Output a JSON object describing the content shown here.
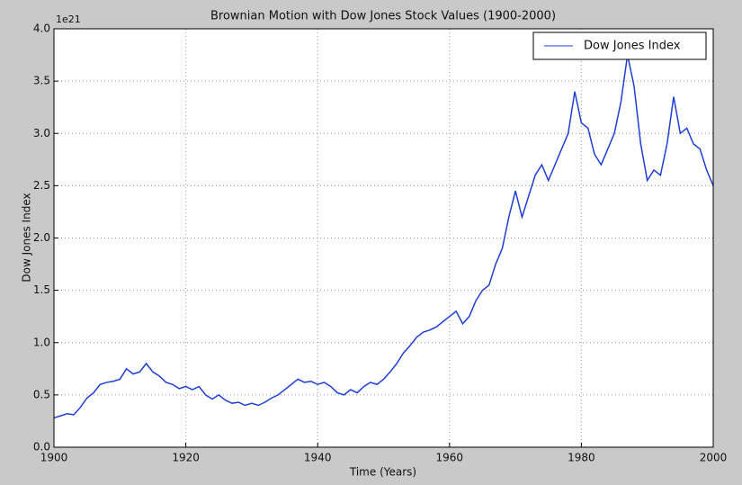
{
  "chart_data": {
    "type": "line",
    "title": "Brownian Motion with Dow Jones Stock Values (1900-2000)",
    "x_label": "Time (Years)",
    "y_label": "Dow Jones Index",
    "y_axis_multiplier": "1e21",
    "x": [
      1900,
      1901,
      1902,
      1903,
      1904,
      1905,
      1906,
      1907,
      1908,
      1909,
      1910,
      1911,
      1912,
      1913,
      1914,
      1915,
      1916,
      1917,
      1918,
      1919,
      1920,
      1921,
      1922,
      1923,
      1924,
      1925,
      1926,
      1927,
      1928,
      1929,
      1930,
      1931,
      1932,
      1933,
      1934,
      1935,
      1936,
      1937,
      1938,
      1939,
      1940,
      1941,
      1942,
      1943,
      1944,
      1945,
      1946,
      1947,
      1948,
      1949,
      1950,
      1951,
      1952,
      1953,
      1954,
      1955,
      1956,
      1957,
      1958,
      1959,
      1960,
      1961,
      1962,
      1963,
      1964,
      1965,
      1966,
      1967,
      1968,
      1969,
      1970,
      1971,
      1972,
      1973,
      1974,
      1975,
      1976,
      1977,
      1978,
      1979,
      1980,
      1981,
      1982,
      1983,
      1984,
      1985,
      1986,
      1987,
      1988,
      1989,
      1990,
      1991,
      1992,
      1993,
      1994,
      1995,
      1996,
      1997,
      1998,
      1999,
      2000
    ],
    "series": [
      {
        "name": "Dow Jones Index",
        "color": "#1f3fd6",
        "values": [
          0.28,
          0.3,
          0.32,
          0.31,
          0.38,
          0.47,
          0.52,
          0.6,
          0.62,
          0.63,
          0.65,
          0.75,
          0.7,
          0.72,
          0.8,
          0.72,
          0.68,
          0.62,
          0.6,
          0.56,
          0.58,
          0.55,
          0.58,
          0.5,
          0.46,
          0.5,
          0.45,
          0.42,
          0.43,
          0.4,
          0.42,
          0.4,
          0.43,
          0.47,
          0.5,
          0.55,
          0.6,
          0.65,
          0.62,
          0.63,
          0.6,
          0.62,
          0.58,
          0.52,
          0.5,
          0.55,
          0.52,
          0.58,
          0.62,
          0.6,
          0.65,
          0.72,
          0.8,
          0.9,
          0.97,
          1.05,
          1.1,
          1.12,
          1.15,
          1.2,
          1.25,
          1.3,
          1.18,
          1.25,
          1.4,
          1.5,
          1.55,
          1.75,
          1.9,
          2.2,
          2.45,
          2.2,
          2.4,
          2.6,
          2.7,
          2.55,
          2.7,
          2.85,
          3.0,
          3.4,
          3.1,
          3.05,
          2.8,
          2.7,
          2.85,
          3.0,
          3.3,
          3.75,
          3.45,
          2.9,
          2.55,
          2.65,
          2.6,
          2.9,
          3.35,
          3.0,
          3.05,
          2.9,
          2.85,
          2.65,
          2.5
        ]
      }
    ],
    "xlim": [
      1900,
      2000
    ],
    "xticks": [
      1900,
      1920,
      1940,
      1960,
      1980,
      2000
    ],
    "ylim": [
      0,
      4
    ],
    "yticks": [
      {
        "value": 0,
        "label": "0.0"
      },
      {
        "value": 0.5,
        "label": "0.5"
      },
      {
        "value": 1,
        "label": "1.0"
      },
      {
        "value": 1.5,
        "label": "1.5"
      },
      {
        "value": 2,
        "label": "2.0"
      },
      {
        "value": 2.5,
        "label": "2.5"
      },
      {
        "value": 3,
        "label": "3.0"
      },
      {
        "value": 3.5,
        "label": "3.5"
      },
      {
        "value": 4,
        "label": "4.0"
      }
    ],
    "grid": true,
    "legend": "upper right"
  }
}
